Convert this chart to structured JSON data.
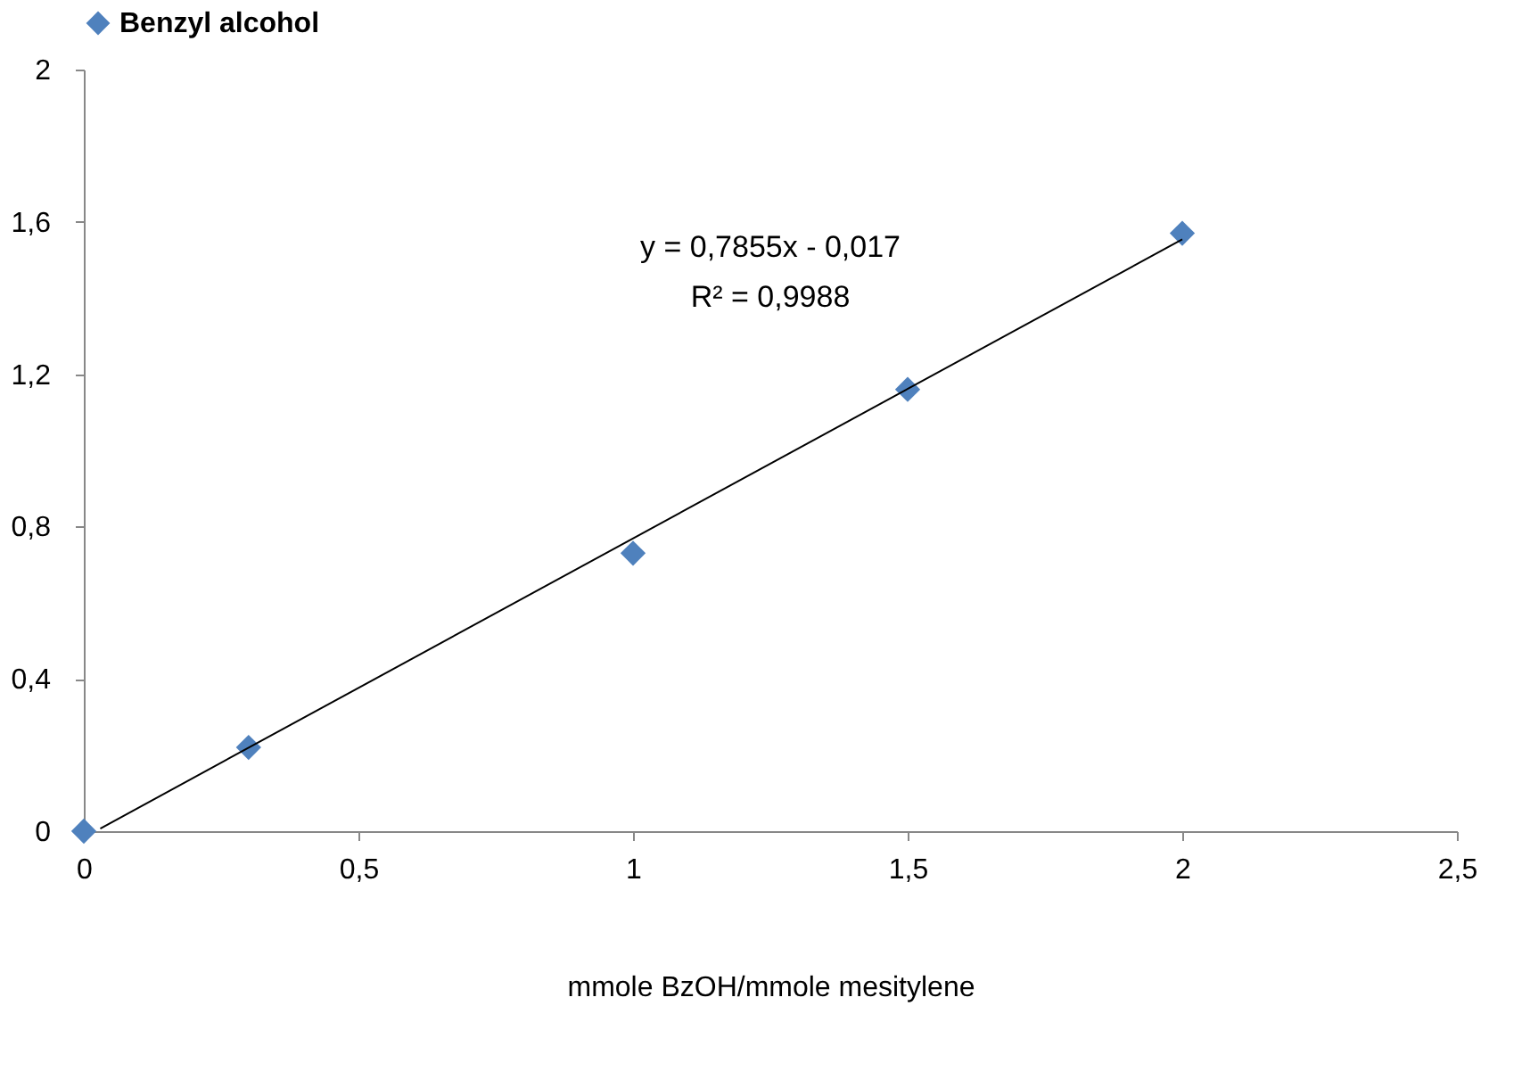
{
  "chart_data": {
    "type": "scatter",
    "xlabel": "mmole BzOH/mmole mesitylene",
    "series": [
      {
        "name": "Benzyl alcohol",
        "color": "#4f81bd",
        "marker": "diamond",
        "x": [
          0,
          0.3,
          1,
          1.5,
          2
        ],
        "values": [
          0.0,
          0.22,
          0.73,
          1.16,
          1.57
        ]
      },
      {
        "color": "#000000",
        "type": "line",
        "marker": "none",
        "x": [
          0.03,
          2
        ],
        "values": [
          0.007,
          1.554
        ]
      }
    ],
    "annotations": [
      "y = 0,7855x - 0,017",
      "R² = 0,9988"
    ],
    "xlim": [
      0,
      2.5
    ],
    "ylim": [
      0,
      2
    ],
    "xticks": [
      0,
      {
        "value": 0.5,
        "label": "0,5"
      },
      1,
      {
        "value": 1.5,
        "label": "1,5"
      },
      2,
      {
        "value": 2.5,
        "label": "2,5"
      }
    ],
    "yticks": [
      0,
      {
        "value": 0.4,
        "label": "0,4"
      },
      {
        "value": 0.8,
        "label": "0,8"
      },
      {
        "value": 1.2,
        "label": "1,2"
      },
      {
        "value": 1.6,
        "label": "1,6"
      },
      2
    ],
    "legend": "top",
    "grid": false
  }
}
